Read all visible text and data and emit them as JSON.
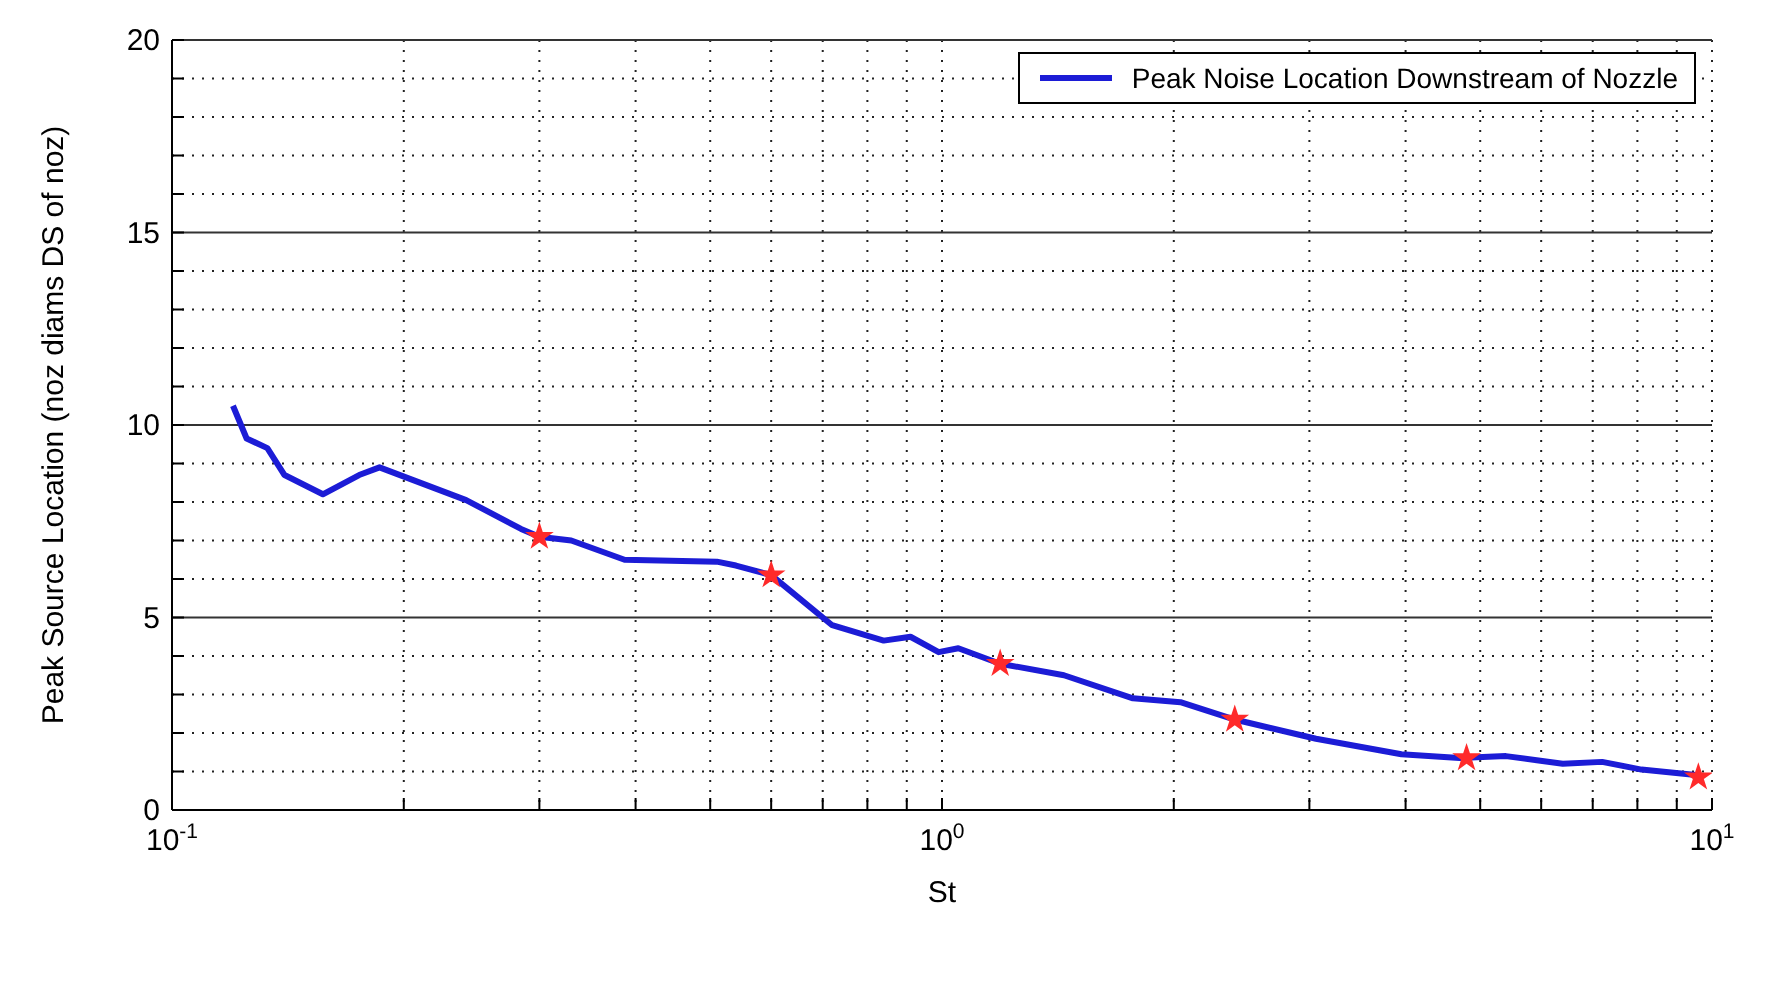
{
  "chart_data": {
    "type": "line",
    "xlabel": "St",
    "ylabel": "Peak Source Location (noz diams DS of noz)",
    "log": "x",
    "grid": true,
    "legend": "top right",
    "xlim": [
      0.1,
      10
    ],
    "ylim": [
      0,
      20
    ],
    "xticks": [
      {
        "value": 0.1,
        "label": "10$^{-1}$"
      },
      {
        "value": 0.2,
        "label": null
      },
      {
        "value": 0.3,
        "label": null
      },
      {
        "value": 0.4,
        "label": null
      },
      {
        "value": 0.5,
        "label": null
      },
      {
        "value": 0.6,
        "label": null
      },
      {
        "value": 0.7,
        "label": null
      },
      {
        "value": 0.8,
        "label": null
      },
      {
        "value": 0.9,
        "label": null
      },
      {
        "value": 1,
        "label": "10$^{0}$"
      },
      {
        "value": 2,
        "label": null
      },
      {
        "value": 3,
        "label": null
      },
      {
        "value": 4,
        "label": null
      },
      {
        "value": 5,
        "label": null
      },
      {
        "value": 6,
        "label": null
      },
      {
        "value": 7,
        "label": null
      },
      {
        "value": 8,
        "label": null
      },
      {
        "value": 9,
        "label": null
      },
      {
        "value": 10,
        "label": "10$^{1}$"
      }
    ],
    "yticks": [
      0,
      {
        "value": 1,
        "label": null
      },
      {
        "value": 2,
        "label": null
      },
      {
        "value": 3,
        "label": null
      },
      {
        "value": 4,
        "label": null
      },
      5,
      {
        "value": 6,
        "label": null
      },
      {
        "value": 7,
        "label": null
      },
      {
        "value": 8,
        "label": null
      },
      {
        "value": 9,
        "label": null
      },
      10,
      {
        "value": 11,
        "label": null
      },
      {
        "value": 12,
        "label": null
      },
      {
        "value": 13,
        "label": null
      },
      {
        "value": 14,
        "label": null
      },
      15,
      {
        "value": 16,
        "label": null
      },
      {
        "value": 17,
        "label": null
      },
      {
        "value": 18,
        "label": null
      },
      {
        "value": 19,
        "label": null
      },
      20
    ],
    "series": [
      {
        "name": "Peak Noise Location Downstream of Nozzle",
        "color": "#1c1cd6",
        "marker": "none",
        "line_style": "solid",
        "x": [
          0.12,
          0.125,
          0.133,
          0.14,
          0.157,
          0.175,
          0.186,
          0.241,
          0.284,
          0.3,
          0.33,
          0.387,
          0.51,
          0.54,
          0.6,
          0.72,
          0.84,
          0.91,
          0.99,
          1.05,
          1.19,
          1.44,
          1.77,
          2.04,
          2.4,
          3.06,
          3.95,
          4.7,
          5.4,
          6.4,
          7.2,
          8.1,
          9.6
        ],
        "values": [
          10.5,
          9.65,
          9.4,
          8.7,
          8.2,
          8.7,
          8.9,
          8.05,
          7.3,
          7.1,
          7.0,
          6.5,
          6.45,
          6.35,
          6.1,
          4.8,
          4.4,
          4.5,
          4.1,
          4.2,
          3.8,
          3.5,
          2.9,
          2.8,
          2.35,
          1.85,
          1.45,
          1.35,
          1.4,
          1.2,
          1.25,
          1.05,
          0.9
        ]
      },
      {
        "type": "scatter",
        "color": "#ff2a2a",
        "marker": "star",
        "x": [
          0.3,
          0.6,
          1.19,
          2.4,
          4.8,
          9.6
        ],
        "values": [
          7.1,
          6.1,
          3.8,
          2.35,
          1.35,
          0.85
        ]
      }
    ]
  }
}
